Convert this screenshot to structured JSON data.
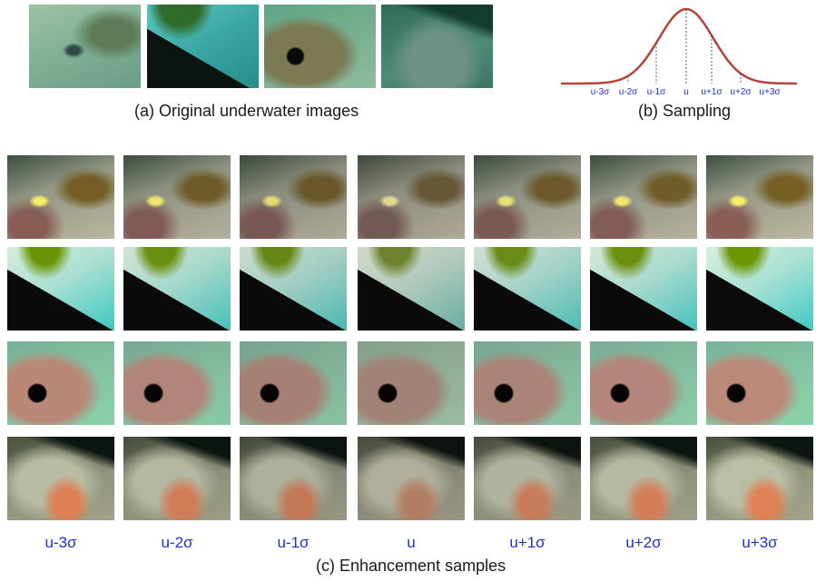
{
  "top": {
    "original_caption": "(a) Original underwater images",
    "sampling_caption": "(b) Sampling",
    "sampling_labels": [
      "u-3σ",
      "u-2σ",
      "u-1σ",
      "u",
      "u+1σ",
      "u+2σ",
      "u+3σ"
    ]
  },
  "grid": {
    "column_labels": [
      "u-3σ",
      "u-2σ",
      "u-1σ",
      "u",
      "u+1σ",
      "u+2σ",
      "u+3σ"
    ],
    "caption": "(c) Enhancement samples"
  },
  "colors": {
    "curve": "#b5433a",
    "label_blue": "#1f2fd6",
    "dashed": "#333333"
  }
}
